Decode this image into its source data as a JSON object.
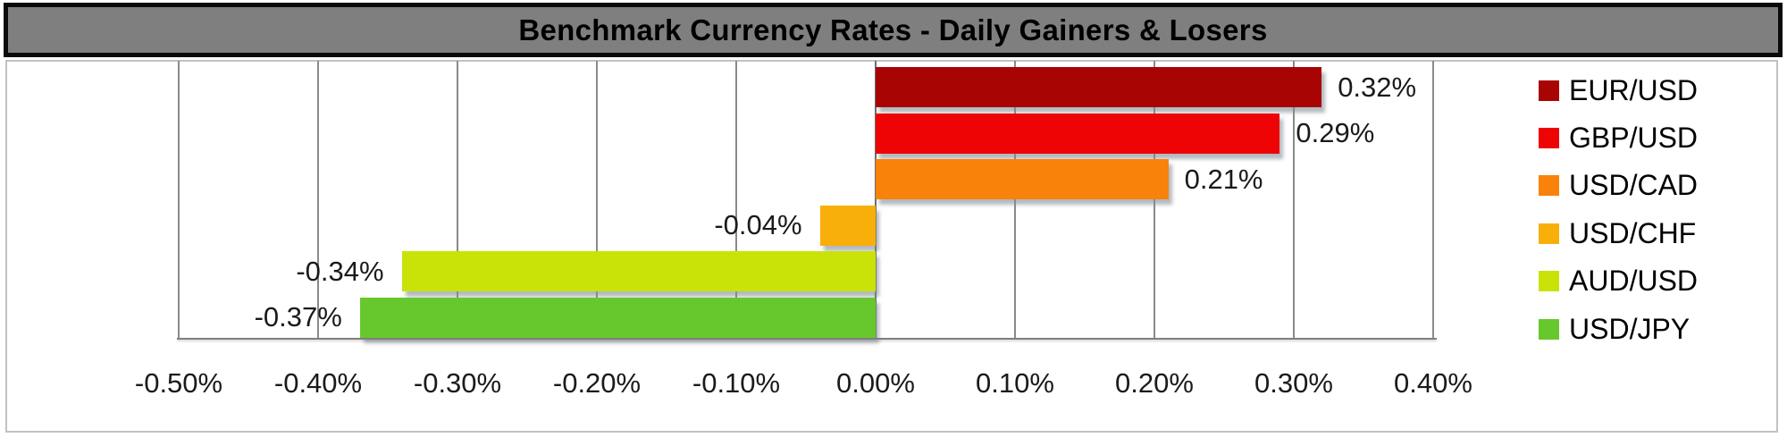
{
  "title": "Benchmark Currency Rates - Daily Gainers & Losers",
  "colors": {
    "title_bar_bg": "#7f7f7f",
    "title_text": "#000000",
    "gridline": "#8a8a8a",
    "zero_line": "#6e6e6e",
    "axis_line": "#7f7f7f",
    "chart_border": "#c2c2c2"
  },
  "chart_data": {
    "type": "bar",
    "orientation": "horizontal",
    "title": "Benchmark Currency Rates - Daily Gainers & Losers",
    "categories": [
      "EUR/USD",
      "GBP/USD",
      "USD/CAD",
      "USD/CHF",
      "AUD/USD",
      "USD/JPY"
    ],
    "values": [
      0.32,
      0.29,
      0.21,
      -0.04,
      -0.34,
      -0.37
    ],
    "value_labels": [
      "0.32%",
      "0.29%",
      "0.21%",
      "-0.04%",
      "-0.34%",
      "-0.37%"
    ],
    "bar_colors": [
      "#a90404",
      "#ee0404",
      "#f8820a",
      "#f8af0a",
      "#c9e308",
      "#67c82d"
    ],
    "xlabel": "",
    "ylabel": "",
    "xlim": [
      -0.5,
      0.4
    ],
    "x_tick_values": [
      -0.5,
      -0.4,
      -0.3,
      -0.2,
      -0.1,
      0.0,
      0.1,
      0.2,
      0.3,
      0.4
    ],
    "x_tick_labels": [
      "-0.50%",
      "-0.40%",
      "-0.30%",
      "-0.20%",
      "-0.10%",
      "0.00%",
      "0.10%",
      "0.20%",
      "0.30%",
      "0.40%"
    ],
    "grid": true,
    "legend_position": "right"
  }
}
